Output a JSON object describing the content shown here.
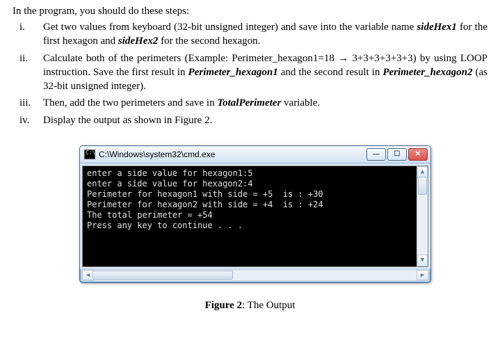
{
  "intro": "In the program, you should do these steps:",
  "items": [
    {
      "roman": "i.",
      "html": "Get two values from keyboard (32-bit unsigned integer) and save into the variable name <span class=\"bolditalic\">sideHex1</span> for the first hexagon and <span class=\"bolditalic\">sideHex2</span> for the second hexagon."
    },
    {
      "roman": "ii.",
      "html": "Calculate both of the perimeters (Example: Perimeter_hexagon1=18 <span class=\"arrow\">&rarr;</span> 3+3+3+3+3+3) by using LOOP instruction. Save the first result in <span class=\"bolditalic\">Perimeter_hexagon1</span> and the second result in <span class=\"bolditalic\">Perimeter_hexagon2</span> (as 32-bit unsigned integer)."
    },
    {
      "roman": "iii.",
      "html": "Then, add the two perimeters and save in <span class=\"bolditalic\">TotalPerimeter</span> variable."
    },
    {
      "roman": "iv.",
      "html": "Display the output as shown in Figure 2."
    }
  ],
  "cmd": {
    "title": "C:\\Windows\\system32\\cmd.exe",
    "lines": [
      "enter a side value for hexagon1:5",
      "enter a side value for hexagon2:4",
      "Perimeter for hexagon1 with side = +5  is : +30",
      "Perimeter for hexagon2 with side = +4  is : +24",
      "The total perimeter = +54",
      "Press any key to continue . . ."
    ]
  },
  "caption_label": "Figure 2",
  "caption_text": ":  The Output"
}
